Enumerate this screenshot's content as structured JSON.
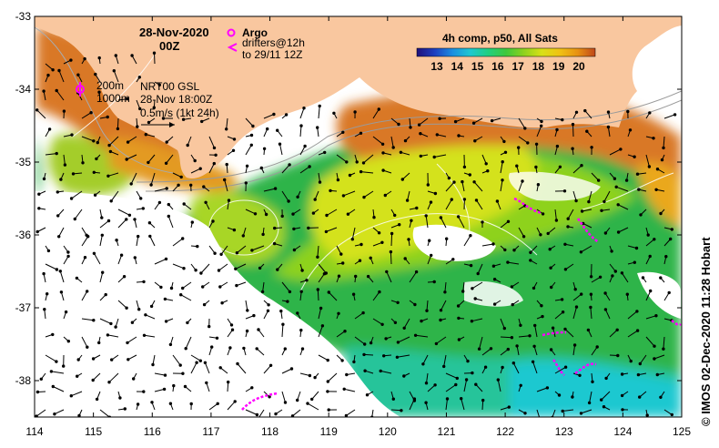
{
  "header": {
    "date": "28-Nov-2020",
    "time": "00Z"
  },
  "legend": {
    "argo_label": "Argo",
    "drifters_line1": "drifters@12h",
    "drifters_line2": "to 29/11 12Z",
    "argo_color": "#ff00ff",
    "drifter_color": "#ff00ff"
  },
  "colorbar": {
    "title": "4h comp, p50, All Sats",
    "ticks": [
      "13",
      "14",
      "15",
      "16",
      "17",
      "18",
      "19",
      "20"
    ],
    "stops": [
      "#20107a",
      "#1e3fc0",
      "#1c8ee0",
      "#1ec8d0",
      "#20d080",
      "#3ec83c",
      "#8ed21e",
      "#d8e018",
      "#f0c214",
      "#e89212",
      "#d8661a",
      "#c0481a"
    ]
  },
  "isobaths": {
    "label_200": "200m",
    "label_1000": "1000m"
  },
  "current_info": {
    "line1": "NRT00 GSL",
    "line2": "28-Nov 18:00Z",
    "line3": "0.5m/s (1kt 24h)"
  },
  "axes": {
    "x_ticks": [
      "114",
      "115",
      "116",
      "117",
      "118",
      "119",
      "120",
      "121",
      "122",
      "123",
      "124",
      "125"
    ],
    "y_ticks": [
      "-33",
      "-34",
      "-35",
      "-36",
      "-37",
      "-38"
    ],
    "lon_range": [
      114,
      125
    ],
    "lat_range": [
      -38.5,
      -33
    ]
  },
  "credit": "© IMOS 02-Dec-2020 11:28 Hobart",
  "colors": {
    "land": "#f9c79f",
    "warm_sst": "#d97826",
    "mid_sst": "#d4e21e",
    "cool_sst": "#2fb44a",
    "cold_sst": "#1ec8d0"
  }
}
